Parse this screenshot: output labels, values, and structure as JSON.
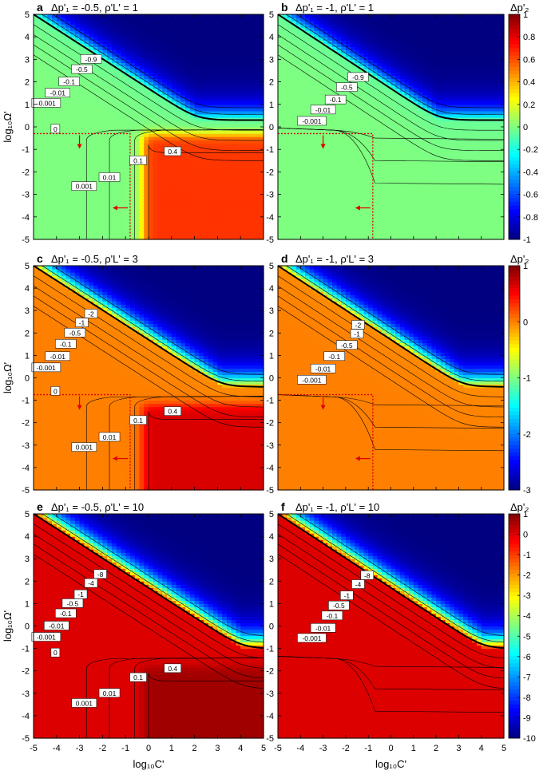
{
  "chart_data": [
    {
      "type": "heatmap",
      "letter": "a",
      "title": "Δp'₁ = -0.5, ρ'L' = 1",
      "dp1": -0.5,
      "rhoL": 1,
      "xlabel": "",
      "ylabel": "log₁₀Ω'",
      "xlim": [
        -5,
        5
      ],
      "ylim": [
        -5,
        5
      ],
      "zlim": [
        -1,
        1
      ],
      "contour_labels": [
        {
          "text": "-0.9",
          "x": -2.5,
          "y": 3.0
        },
        {
          "text": "-0.5",
          "x": -2.9,
          "y": 2.55
        },
        {
          "text": "-0.1",
          "x": -3.45,
          "y": 2.0
        },
        {
          "text": "-0.01",
          "x": -3.95,
          "y": 1.5
        },
        {
          "text": "-0.001",
          "x": -4.45,
          "y": 1.05
        },
        {
          "text": "0",
          "x": -4.05,
          "y": -0.1
        },
        {
          "text": "0.001",
          "x": -2.8,
          "y": -2.65
        },
        {
          "text": "0.01",
          "x": -1.7,
          "y": -2.25
        },
        {
          "text": "0.1",
          "x": -0.45,
          "y": -1.5
        },
        {
          "text": "0.4",
          "x": 1.05,
          "y": -1.1
        }
      ],
      "dashed_box": {
        "x": -0.8,
        "y": -0.3
      },
      "colorbar": null
    },
    {
      "type": "heatmap",
      "letter": "b",
      "title": "Δp'₁ = -1, ρ'L' = 1",
      "dp1": -1,
      "rhoL": 1,
      "xlabel": "",
      "ylabel": "",
      "xlim": [
        -5,
        5
      ],
      "ylim": [
        -5,
        5
      ],
      "zlim": [
        -1,
        1
      ],
      "contour_labels": [
        {
          "text": "-0.9",
          "x": -1.45,
          "y": 2.2
        },
        {
          "text": "-0.5",
          "x": -1.95,
          "y": 1.75
        },
        {
          "text": "-0.1",
          "x": -2.45,
          "y": 1.2
        },
        {
          "text": "-0.01",
          "x": -3.0,
          "y": 0.75
        },
        {
          "text": "-0.001",
          "x": -3.5,
          "y": 0.25
        }
      ],
      "dashed_box": {
        "x": -0.8,
        "y": -0.3
      },
      "colorbar": {
        "label": "Δp'₂",
        "min": -1,
        "max": 1,
        "ticks": [
          "1",
          "0.8",
          "0.6",
          "0.4",
          "0.2",
          "0",
          "-0.2",
          "-0.4",
          "-0.6",
          "-0.8",
          "-1"
        ]
      }
    },
    {
      "type": "heatmap",
      "letter": "c",
      "title": "Δp'₁ = -0.5, ρ'L' = 3",
      "dp1": -0.5,
      "rhoL": 3,
      "xlabel": "",
      "ylabel": "log₁₀Ω'",
      "xlim": [
        -5,
        5
      ],
      "ylim": [
        -5,
        5
      ],
      "zlim": [
        -3,
        1
      ],
      "contour_labels": [
        {
          "text": "-2",
          "x": -2.5,
          "y": 2.85
        },
        {
          "text": "-1",
          "x": -2.9,
          "y": 2.45
        },
        {
          "text": "-0.5",
          "x": -3.2,
          "y": 2.0
        },
        {
          "text": "-0.1",
          "x": -3.6,
          "y": 1.5
        },
        {
          "text": "-0.01",
          "x": -3.95,
          "y": 0.95
        },
        {
          "text": "-0.001",
          "x": -4.45,
          "y": 0.45
        },
        {
          "text": "0",
          "x": -4.05,
          "y": -0.6
        },
        {
          "text": "0.001",
          "x": -2.8,
          "y": -3.1
        },
        {
          "text": "0.01",
          "x": -1.7,
          "y": -2.65
        },
        {
          "text": "0.1",
          "x": -0.45,
          "y": -1.9
        },
        {
          "text": "0.4",
          "x": 1.05,
          "y": -1.5
        }
      ],
      "dashed_box": {
        "x": -0.8,
        "y": -0.75
      },
      "colorbar": null
    },
    {
      "type": "heatmap",
      "letter": "d",
      "title": "Δp'₁ = -1, ρ'L' = 3",
      "dp1": -1,
      "rhoL": 3,
      "xlabel": "",
      "ylabel": "",
      "xlim": [
        -5,
        5
      ],
      "ylim": [
        -5,
        5
      ],
      "zlim": [
        -3,
        1
      ],
      "contour_labels": [
        {
          "text": "-2",
          "x": -1.45,
          "y": 2.35
        },
        {
          "text": "-1",
          "x": -1.5,
          "y": 1.95
        },
        {
          "text": "-0.5",
          "x": -1.95,
          "y": 1.45
        },
        {
          "text": "-0.1",
          "x": -2.5,
          "y": 0.95
        },
        {
          "text": "-0.01",
          "x": -3.0,
          "y": 0.4
        },
        {
          "text": "-0.001",
          "x": -3.5,
          "y": -0.1
        }
      ],
      "dashed_box": {
        "x": -0.8,
        "y": -0.75
      },
      "colorbar": {
        "label": "Δp'₂",
        "min": -3,
        "max": 1,
        "ticks": [
          "1",
          "0",
          "-1",
          "-2",
          "-3"
        ]
      }
    },
    {
      "type": "heatmap",
      "letter": "e",
      "title": "Δp'₁ = -0.5, ρ'L' = 10",
      "dp1": -0.5,
      "rhoL": 10,
      "xlabel": "log₁₀C'",
      "ylabel": "log₁₀Ω'",
      "xlim": [
        -5,
        5
      ],
      "ylim": [
        -5,
        5
      ],
      "zlim": [
        -10,
        1
      ],
      "contour_labels": [
        {
          "text": "-8",
          "x": -2.1,
          "y": 2.3
        },
        {
          "text": "-4",
          "x": -2.5,
          "y": 1.9
        },
        {
          "text": "-1",
          "x": -2.95,
          "y": 1.4
        },
        {
          "text": "-0.5",
          "x": -3.3,
          "y": 1.0
        },
        {
          "text": "-0.1",
          "x": -3.6,
          "y": 0.55
        },
        {
          "text": "-0.01",
          "x": -4.0,
          "y": 0.0
        },
        {
          "text": "-0.001",
          "x": -4.45,
          "y": -0.5
        },
        {
          "text": "0",
          "x": -4.05,
          "y": -1.2
        },
        {
          "text": "0.001",
          "x": -2.8,
          "y": -3.45
        },
        {
          "text": "0.01",
          "x": -1.7,
          "y": -3.0
        },
        {
          "text": "0.1",
          "x": -0.45,
          "y": -2.3
        },
        {
          "text": "0.4",
          "x": 1.05,
          "y": -1.9
        }
      ],
      "dashed_box": {
        "x": -0.8,
        "y": -1.3
      },
      "colorbar": null
    },
    {
      "type": "heatmap",
      "letter": "f",
      "title": "Δp'₁ = -1, ρ'L' = 10",
      "dp1": -1,
      "rhoL": 10,
      "xlabel": "log₁₀C'",
      "ylabel": "",
      "xlim": [
        -5,
        5
      ],
      "ylim": [
        -5,
        5
      ],
      "zlim": [
        -10,
        1
      ],
      "contour_labels": [
        {
          "text": "-8",
          "x": -1.05,
          "y": 2.25
        },
        {
          "text": "-4",
          "x": -1.45,
          "y": 1.85
        },
        {
          "text": "-1",
          "x": -1.95,
          "y": 1.35
        },
        {
          "text": "-0.5",
          "x": -2.3,
          "y": 0.9
        },
        {
          "text": "-0.1",
          "x": -2.6,
          "y": 0.45
        },
        {
          "text": "-0.01",
          "x": -3.0,
          "y": -0.1
        },
        {
          "text": "-0.001",
          "x": -3.5,
          "y": -0.55
        }
      ],
      "dashed_box": {
        "x": -0.8,
        "y": -1.3
      },
      "colorbar": {
        "label": "Δp'₂",
        "min": -10,
        "max": 1,
        "ticks": [
          "1",
          "0",
          "-1",
          "-2",
          "-3",
          "-4",
          "-5",
          "-6",
          "-7",
          "-8",
          "-9",
          "-10"
        ]
      }
    }
  ],
  "ticks": {
    "x": [
      "-5",
      "-4",
      "-3",
      "-2",
      "-1",
      "0",
      "1",
      "2",
      "3",
      "4",
      "5"
    ],
    "y": [
      "5",
      "4",
      "3",
      "2",
      "1",
      "0",
      "-1",
      "-2",
      "-3",
      "-4",
      "-5"
    ]
  },
  "colors": {
    "negative": "#00007f",
    "zero": "#8fff70",
    "positive": "#ff5a00",
    "dashed": "#e00000",
    "contour": "#000000"
  }
}
